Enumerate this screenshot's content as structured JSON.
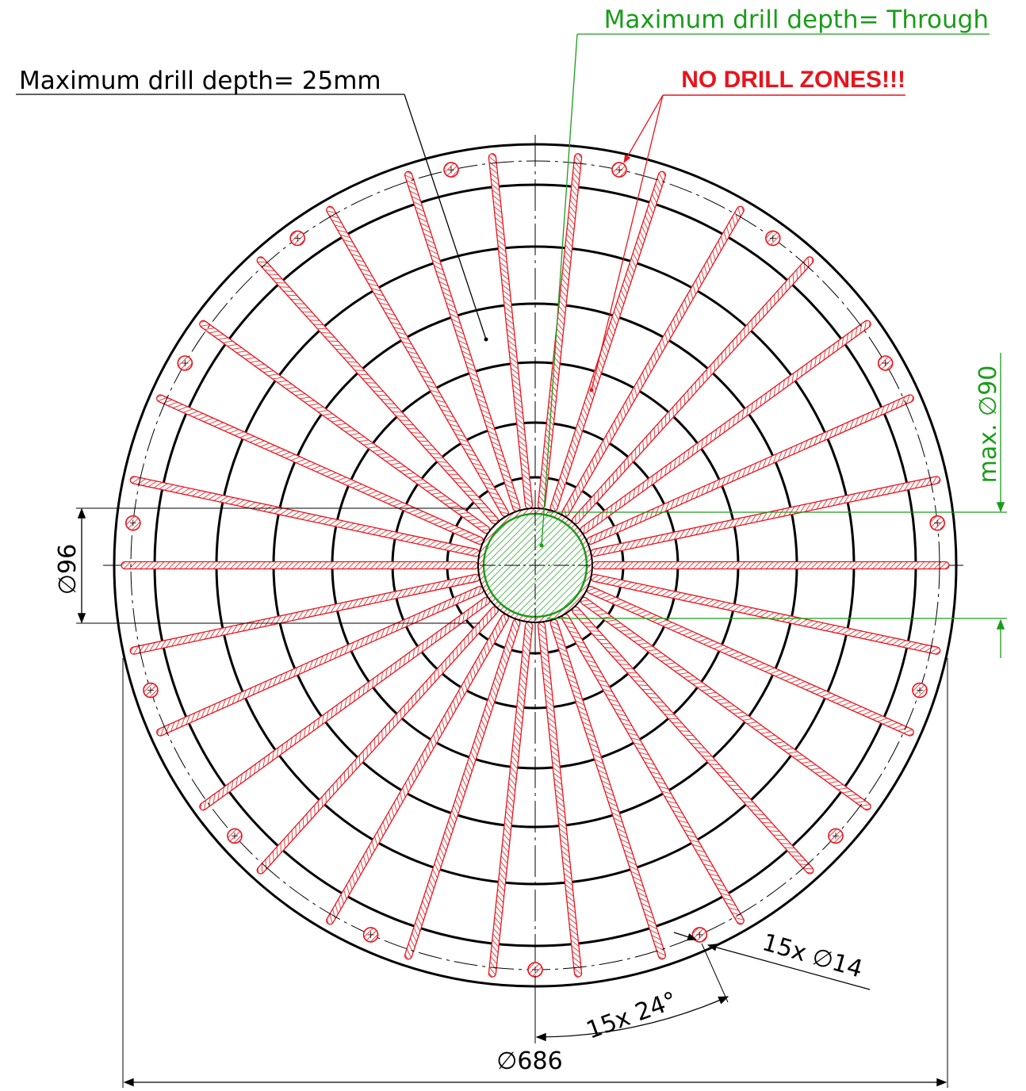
{
  "labels": {
    "through_note": "Maximum drill depth= Through",
    "depth_note": "Maximum drill depth= 25mm",
    "no_drill": "NO DRILL ZONES!!!",
    "max_dia": "max. ∅90",
    "dia_hub": "∅96",
    "dia_outer": "∅686",
    "holes": "15x ∅14",
    "angle": "15x 24°"
  },
  "colors": {
    "line": "#000000",
    "red": "#e8141c",
    "red_hatch": "#e8141c",
    "green": "#1a9c1a",
    "green_fill": "#bfe8bf"
  },
  "spec": {
    "outer_diameter_mm": 686,
    "hub_diameter_mm": 96,
    "through_zone_max_diameter_mm": 90,
    "hole_count": 15,
    "hole_diameter_mm": 14,
    "hole_angle_step_deg": 24,
    "rib_count": 30
  }
}
